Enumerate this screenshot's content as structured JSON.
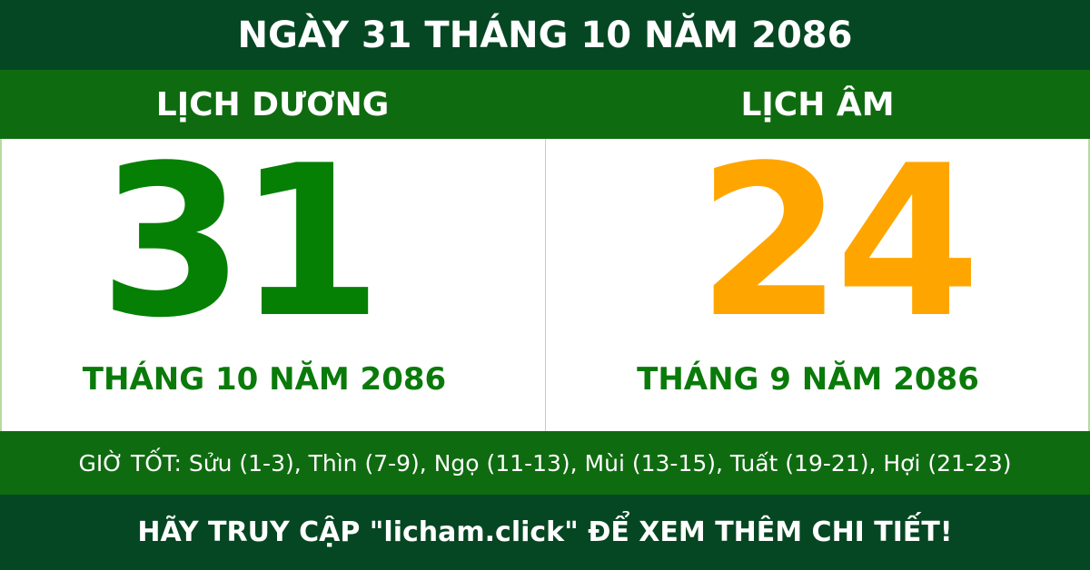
{
  "header": {
    "title": "NGÀY 31 THÁNG 10 NĂM 2086"
  },
  "columns": {
    "solar_label": "LỊCH DƯƠNG",
    "lunar_label": "LỊCH ÂM"
  },
  "solar": {
    "day": "31",
    "month_year": "THÁNG 10 NĂM 2086",
    "color": "#058005"
  },
  "lunar": {
    "day": "24",
    "month_year": "THÁNG 9 NĂM 2086",
    "color": "#ffa500"
  },
  "good_hours": "GIỜ TỐT: Sửu (1-3), Thìn (7-9), Ngọ (11-13), Mùi (13-15), Tuất (19-21), Hợi (21-23)",
  "footer": {
    "text": "HÃY TRUY CẬP \"licham.click\" ĐỂ XEM THÊM CHI TIẾT!"
  }
}
